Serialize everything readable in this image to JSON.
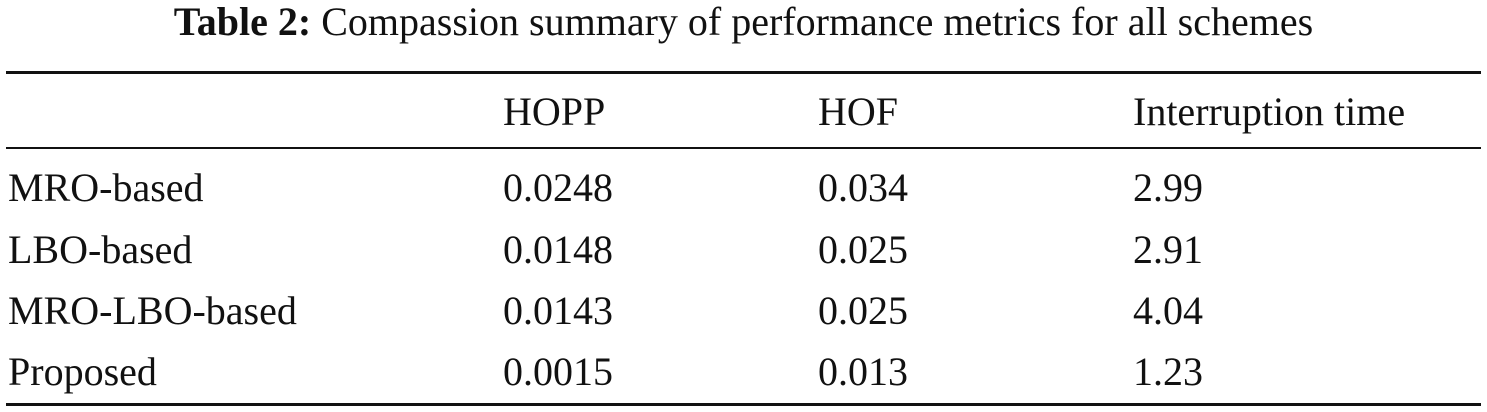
{
  "caption": {
    "label": "Table 2:",
    "text": "Compassion summary of performance metrics for all schemes"
  },
  "table": {
    "header": [
      "HOPP",
      "HOF",
      "Interruption time"
    ],
    "rows": [
      [
        "MRO-based",
        "0.0248",
        "0.034",
        "2.99"
      ],
      [
        "LBO-based",
        "0.0148",
        "0.025",
        "2.91"
      ],
      [
        "MRO-LBO-based",
        "0.0143",
        "0.025",
        "4.04"
      ],
      [
        "Proposed",
        "0.0015",
        "0.013",
        "1.23"
      ]
    ]
  }
}
